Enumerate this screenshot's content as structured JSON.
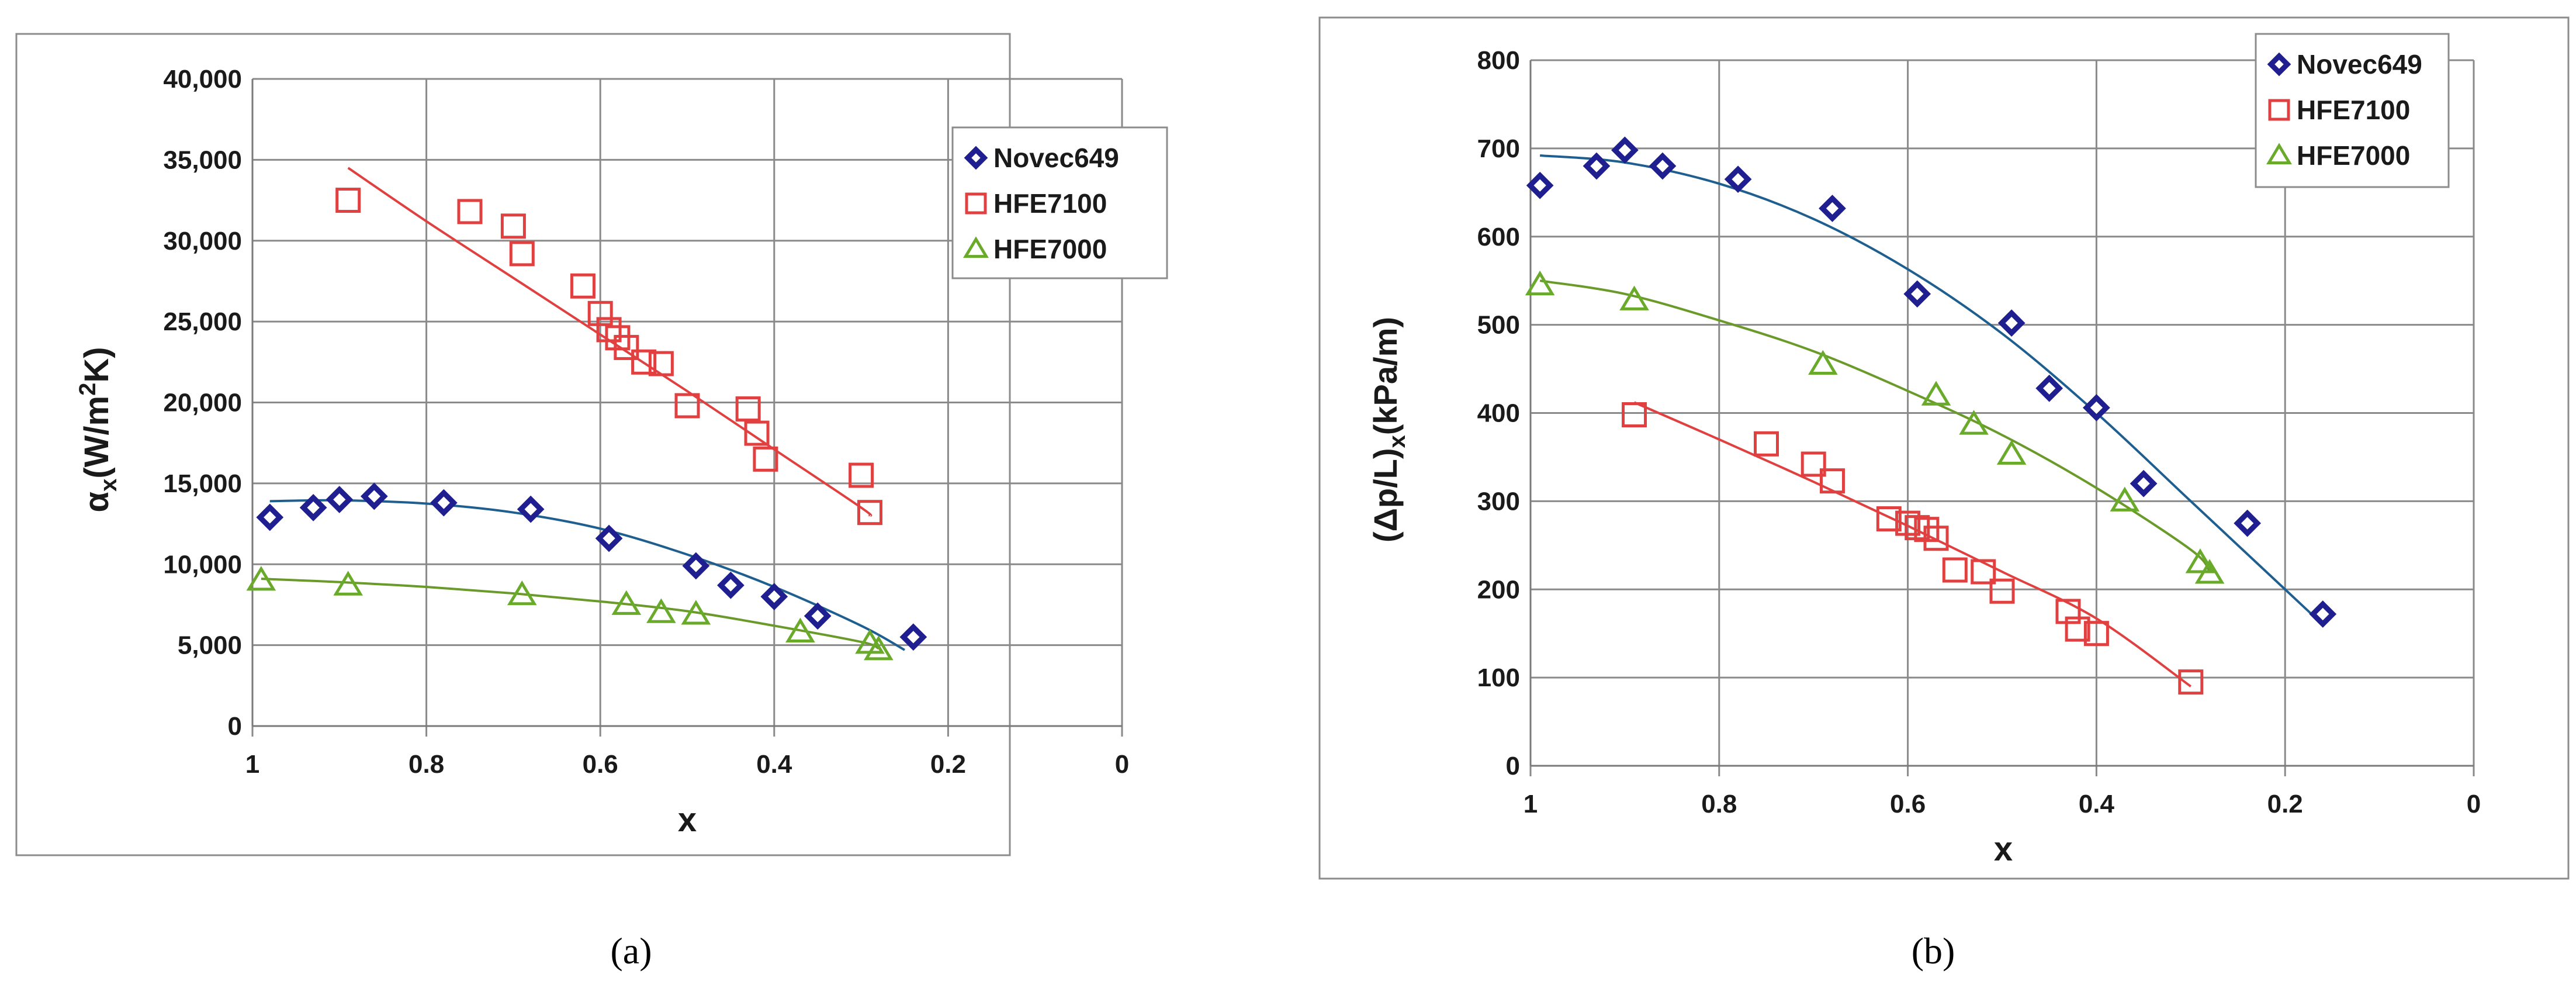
{
  "panels": [
    {
      "id": "a",
      "caption": "(a)",
      "chart_data": {
        "type": "scatter",
        "xlabel": "x",
        "ylabel": "αx(W/m2K)",
        "ylabel_parts": {
          "main": "α",
          "sub": "x",
          "open": "(W/m",
          "sup": "2",
          "close": "K)"
        },
        "xlim": [
          1,
          0
        ],
        "ylim": [
          0,
          40000
        ],
        "x_ticks": [
          "1",
          "0.8",
          "0.6",
          "0.4",
          "0.2",
          "0"
        ],
        "y_ticks": [
          "0",
          "5,000",
          "10,000",
          "15,000",
          "20,000",
          "25,000",
          "30,000",
          "35,000",
          "40,000"
        ],
        "grid": true,
        "legend_position": "top-right",
        "series": [
          {
            "name": "Novec649",
            "marker": "diamond",
            "color": "#1f1f8f",
            "line_color": "#1f5f8f",
            "x": [
              0.98,
              0.93,
              0.9,
              0.86,
              0.78,
              0.68,
              0.59,
              0.49,
              0.45,
              0.4,
              0.35,
              0.24
            ],
            "y": [
              12900,
              13500,
              14000,
              14200,
              13800,
              13400,
              11600,
              9900,
              8700,
              8000,
              6800,
              5500
            ],
            "fit": {
              "x": [
                0.98,
                0.9,
                0.8,
                0.7,
                0.6,
                0.5,
                0.4,
                0.3,
                0.25
              ],
              "y": [
                13900,
                13950,
                13750,
                13200,
                12200,
                10600,
                8600,
                6200,
                4700
              ]
            }
          },
          {
            "name": "HFE7100",
            "marker": "square",
            "color": "#e04040",
            "line_color": "#e04040",
            "x": [
              0.89,
              0.75,
              0.7,
              0.69,
              0.62,
              0.6,
              0.59,
              0.58,
              0.57,
              0.55,
              0.53,
              0.5,
              0.43,
              0.42,
              0.41,
              0.3,
              0.29
            ],
            "y": [
              32500,
              31800,
              30900,
              29200,
              27200,
              25500,
              24500,
              24000,
              23400,
              22500,
              22400,
              19800,
              19600,
              18100,
              16500,
              15500,
              13200
            ],
            "fit": {
              "x": [
                0.89,
                0.8,
                0.7,
                0.6,
                0.5,
                0.4,
                0.3,
                0.29
              ],
              "y": [
                34500,
                31200,
                27700,
                24200,
                20700,
                17100,
                13500,
                13000
              ]
            }
          },
          {
            "name": "HFE7000",
            "marker": "triangle",
            "color": "#6aaa2a",
            "line_color": "#6a9a2a",
            "x": [
              0.99,
              0.89,
              0.69,
              0.57,
              0.53,
              0.49,
              0.37,
              0.29,
              0.28
            ],
            "y": [
              9000,
              8700,
              8100,
              7500,
              7000,
              6900,
              5800,
              5100,
              4700
            ],
            "fit": {
              "x": [
                0.99,
                0.9,
                0.8,
                0.7,
                0.6,
                0.5,
                0.4,
                0.3,
                0.28
              ],
              "y": [
                9100,
                8900,
                8600,
                8200,
                7700,
                7100,
                6200,
                5200,
                4800
              ]
            }
          }
        ]
      }
    },
    {
      "id": "b",
      "caption": "(b)",
      "chart_data": {
        "type": "scatter",
        "xlabel": "x",
        "ylabel": "(Δp/L)x(kPa/m)",
        "ylabel_parts": {
          "main": "(Δp/L)",
          "sub": "x",
          "open": "(kPa/m)",
          "sup": "",
          "close": ""
        },
        "xlim": [
          1,
          0
        ],
        "ylim": [
          0,
          800
        ],
        "x_ticks": [
          "1",
          "0.8",
          "0.6",
          "0.4",
          "0.2",
          "0"
        ],
        "y_ticks": [
          "0",
          "100",
          "200",
          "300",
          "400",
          "500",
          "600",
          "700",
          "800"
        ],
        "grid": true,
        "legend_position": "top-right",
        "series": [
          {
            "name": "Novec649",
            "marker": "diamond",
            "color": "#1f1f8f",
            "line_color": "#1f5f8f",
            "x": [
              0.99,
              0.93,
              0.9,
              0.86,
              0.78,
              0.68,
              0.59,
              0.49,
              0.45,
              0.4,
              0.35,
              0.24,
              0.16
            ],
            "y": [
              658,
              680,
              698,
              680,
              665,
              632,
              535,
              502,
              428,
              406,
              320,
              275,
              172
            ],
            "fit": {
              "x": [
                0.99,
                0.9,
                0.8,
                0.7,
                0.6,
                0.5,
                0.4,
                0.3,
                0.2,
                0.16
              ],
              "y": [
                692,
                684,
                660,
                620,
                563,
                490,
                400,
                300,
                200,
                160
              ]
            }
          },
          {
            "name": "HFE7100",
            "marker": "square",
            "color": "#e04040",
            "line_color": "#e04040",
            "x": [
              0.89,
              0.75,
              0.7,
              0.68,
              0.62,
              0.6,
              0.59,
              0.58,
              0.57,
              0.55,
              0.52,
              0.5,
              0.43,
              0.42,
              0.4,
              0.3
            ],
            "y": [
              398,
              365,
              342,
              323,
              280,
              275,
              270,
              268,
              258,
              222,
              220,
              198,
              175,
              155,
              150,
              95
            ],
            "fit": {
              "x": [
                0.89,
                0.8,
                0.7,
                0.6,
                0.5,
                0.4,
                0.3
              ],
              "y": [
                412,
                370,
                322,
                272,
                220,
                167,
                90
              ]
            }
          },
          {
            "name": "HFE7000",
            "marker": "triangle",
            "color": "#6aaa2a",
            "line_color": "#6a9a2a",
            "x": [
              0.99,
              0.89,
              0.69,
              0.57,
              0.53,
              0.49,
              0.37,
              0.29,
              0.28
            ],
            "y": [
              545,
              528,
              455,
              420,
              387,
              353,
              300,
              230,
              218
            ],
            "fit": {
              "x": [
                0.99,
                0.9,
                0.8,
                0.7,
                0.6,
                0.5,
                0.4,
                0.3,
                0.28
              ],
              "y": [
                550,
                535,
                505,
                470,
                425,
                375,
                315,
                245,
                220
              ]
            }
          }
        ]
      }
    }
  ]
}
